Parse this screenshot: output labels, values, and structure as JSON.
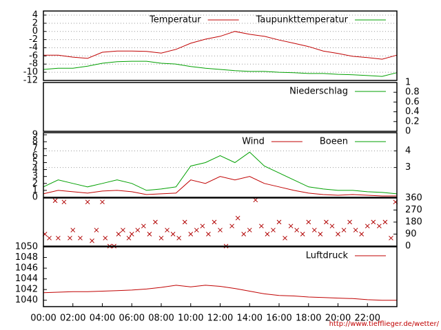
{
  "chart_data": [
    {
      "type": "line",
      "xlim": [
        0,
        24
      ],
      "x": [
        0,
        1,
        2,
        3,
        4,
        5,
        6,
        7,
        8,
        9,
        10,
        11,
        12,
        13,
        14,
        15,
        16,
        17,
        18,
        19,
        20,
        21,
        22,
        23,
        24
      ],
      "ylim": [
        -12,
        5
      ],
      "yticks": [
        4,
        2,
        0,
        -2,
        -4,
        -6,
        -8,
        -10,
        -12
      ],
      "grid": true,
      "legend": "top-right",
      "series": [
        {
          "name": "Temperatur",
          "color": "#c00000",
          "values": [
            -5.8,
            -5.8,
            -6.3,
            -6.6,
            -5.1,
            -4.8,
            -4.8,
            -4.9,
            -5.3,
            -4.4,
            -2.9,
            -1.9,
            -1.2,
            0,
            -0.7,
            -1.2,
            -2.1,
            -2.9,
            -3.7,
            -4.8,
            -5.4,
            -6.1,
            -6.4,
            -6.8,
            -5.8
          ]
        },
        {
          "name": "Taupunkttemperatur",
          "color": "#00a000",
          "values": [
            -9.3,
            -9,
            -9,
            -8.5,
            -7.8,
            -7.4,
            -7.3,
            -7.3,
            -7.8,
            -8,
            -8.6,
            -9,
            -9.3,
            -9.6,
            -9.8,
            -9.8,
            -10,
            -10.1,
            -10.3,
            -10.3,
            -10.5,
            -10.6,
            -10.8,
            -11,
            -10.1
          ]
        }
      ]
    },
    {
      "type": "line",
      "xlim": [
        0,
        24
      ],
      "x": [
        0,
        24
      ],
      "ylim": [
        0,
        1
      ],
      "yticks": [
        0,
        0.2,
        0.4,
        0.6,
        0.8,
        1
      ],
      "yaxis": "right",
      "legend": "top-right",
      "series": [
        {
          "name": "Niederschlag",
          "color": "#00a000",
          "values": [
            0,
            0
          ]
        }
      ]
    },
    {
      "type": "line",
      "xlim": [
        0,
        24
      ],
      "x": [
        0,
        1,
        2,
        3,
        4,
        5,
        6,
        7,
        8,
        9,
        10,
        11,
        12,
        13,
        14,
        15,
        16,
        17,
        18,
        19,
        20,
        21,
        22,
        23,
        24
      ],
      "ylim": [
        0,
        9.3
      ],
      "yticks": [
        0,
        1,
        2,
        3,
        4,
        5,
        6,
        7,
        8,
        9
      ],
      "y2lim": [
        1.2,
        5.1
      ],
      "y2ticks": [
        3,
        4
      ],
      "grid": "y2",
      "legend": "top-right",
      "series": [
        {
          "name": "Wind",
          "color": "#c00000",
          "values": [
            0.5,
            1,
            0.8,
            0.6,
            0.9,
            1,
            0.8,
            0.4,
            0.5,
            0.6,
            2.5,
            2,
            3,
            2.5,
            3,
            2,
            1.5,
            1,
            0.6,
            0.4,
            0.3,
            0.4,
            0.3,
            0.2,
            0.2
          ]
        },
        {
          "name": "Boeen",
          "color": "#00a000",
          "values": [
            1.5,
            2.5,
            2,
            1.5,
            2,
            2.5,
            2,
            1,
            1.2,
            1.5,
            4.5,
            5,
            6,
            5,
            6.5,
            4.5,
            3.5,
            2.5,
            1.5,
            1.2,
            1,
            1,
            0.8,
            0.7,
            0.5
          ]
        }
      ]
    },
    {
      "type": "scatter",
      "xlim": [
        0,
        24
      ],
      "ylim": [
        0,
        360
      ],
      "yticks": [
        0,
        90,
        180,
        270,
        360
      ],
      "yaxis": "right",
      "series": [
        {
          "color": "#b00000",
          "x": [
            0.1,
            0.4,
            0.8,
            1.0,
            1.4,
            1.8,
            2.0,
            2.5,
            3.0,
            3.3,
            3.6,
            4.0,
            4.2,
            4.5,
            4.8,
            5.1,
            5.4,
            5.8,
            6.0,
            6.4,
            6.8,
            7.2,
            7.6,
            8.0,
            8.4,
            8.8,
            9.2,
            9.6,
            10.0,
            10.4,
            10.8,
            11.2,
            11.6,
            12.0,
            12.4,
            12.8,
            13.2,
            13.6,
            14.0,
            14.4,
            14.8,
            15.2,
            15.6,
            16.0,
            16.4,
            16.8,
            17.2,
            17.6,
            18.0,
            18.4,
            18.8,
            19.2,
            19.6,
            20.0,
            20.4,
            20.8,
            21.2,
            21.6,
            22.0,
            22.4,
            22.8,
            23.2,
            23.6,
            23.9
          ],
          "values": [
            90,
            60,
            340,
            60,
            330,
            60,
            120,
            60,
            330,
            40,
            120,
            330,
            60,
            0,
            0,
            90,
            120,
            60,
            90,
            120,
            150,
            90,
            180,
            60,
            120,
            90,
            60,
            180,
            90,
            120,
            150,
            90,
            180,
            120,
            0,
            150,
            210,
            90,
            120,
            345,
            150,
            90,
            120,
            180,
            60,
            150,
            120,
            90,
            180,
            120,
            90,
            180,
            150,
            90,
            120,
            180,
            120,
            90,
            150,
            180,
            150,
            180,
            60,
            330
          ]
        }
      ]
    },
    {
      "type": "line",
      "xlim": [
        0,
        24
      ],
      "x": [
        0,
        1,
        2,
        3,
        4,
        5,
        6,
        7,
        8,
        9,
        10,
        11,
        12,
        13,
        14,
        15,
        16,
        17,
        18,
        19,
        20,
        21,
        22,
        23,
        24
      ],
      "ylim": [
        1038.8,
        1050
      ],
      "yticks": [
        1040,
        1042,
        1044,
        1046,
        1048,
        1050
      ],
      "legend": "top-right",
      "xticks": [
        {
          "value": 0,
          "label": "00:00"
        },
        {
          "value": 2,
          "label": "02:00"
        },
        {
          "value": 4,
          "label": "04:00"
        },
        {
          "value": 6,
          "label": "06:00"
        },
        {
          "value": 8,
          "label": "08:00"
        },
        {
          "value": 10,
          "label": "10:00"
        },
        {
          "value": 12,
          "label": "12:00"
        },
        {
          "value": 14,
          "label": "14:00"
        },
        {
          "value": 16,
          "label": "16:00"
        },
        {
          "value": 18,
          "label": "18:00"
        },
        {
          "value": 20,
          "label": "20:00"
        },
        {
          "value": 22,
          "label": "22:00"
        }
      ],
      "series": [
        {
          "name": "Luftdruck",
          "color": "#c00000",
          "values": [
            1041.4,
            1041.5,
            1041.6,
            1041.6,
            1041.7,
            1041.8,
            1041.9,
            1042.1,
            1042.4,
            1042.8,
            1042.5,
            1042.8,
            1042.6,
            1042.2,
            1041.7,
            1041.2,
            1040.9,
            1040.8,
            1040.6,
            1040.5,
            1040.4,
            1040.3,
            1040.1,
            1040,
            1040
          ]
        }
      ]
    }
  ],
  "footer": "http://www.tiefflieger.de/wetter/"
}
